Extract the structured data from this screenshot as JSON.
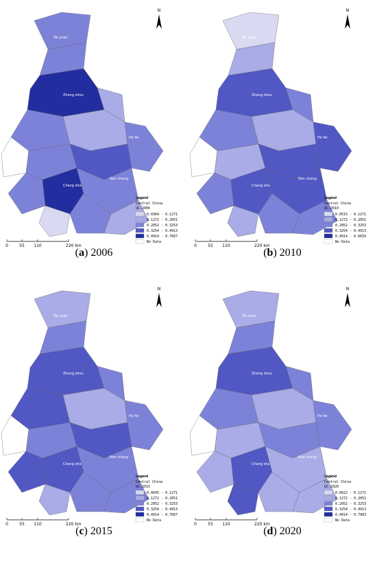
{
  "shared": {
    "north": "N",
    "cities": [
      "Tai yuan",
      "Zheng zhou",
      "He fei",
      "Chang sha",
      "Nan chang"
    ],
    "scale": [
      "0",
      "55",
      "110",
      "220 km"
    ],
    "class_colors": [
      "#d9daf2",
      "#a9ace6",
      "#7d82d9",
      "#5158c4",
      "#222ea0"
    ],
    "no_data_color": "#ffffff"
  },
  "maps": [
    {
      "caption": {
        "prefix": "(",
        "letter": "a",
        "suffix": ") 2006"
      },
      "legend": {
        "title": "Legend",
        "subtitle": "Central China",
        "field": "UC-2006",
        "classes": [
          "0.0364 - 0.1271",
          "0.1272 - 0.2051",
          "0.2052 - 0.3253",
          "0.3254 - 0.4913",
          "0.4914 - 0.7667"
        ],
        "no_data": "No Data"
      },
      "region_classes": [
        2,
        2,
        4,
        1,
        2,
        1,
        2,
        -1,
        2,
        3,
        2,
        4,
        2,
        0,
        2,
        1
      ]
    },
    {
      "caption": {
        "prefix": "(",
        "letter": "b",
        "suffix": ") 2010"
      },
      "legend": {
        "title": "Legend",
        "subtitle": "Central China",
        "field": "UC-2010",
        "classes": [
          "0.0515 - 0.1271",
          "0.1272 - 0.2051",
          "0.2052 - 0.3253",
          "0.3254 - 0.4913",
          "0.4914 - 0.6659"
        ],
        "no_data": "No Data"
      },
      "region_classes": [
        0,
        1,
        3,
        2,
        2,
        1,
        3,
        -1,
        1,
        3,
        2,
        3,
        3,
        1,
        2,
        2
      ]
    },
    {
      "caption": {
        "prefix": "(",
        "letter": "c",
        "suffix": ") 2015"
      },
      "legend": {
        "title": "Legend",
        "subtitle": "Central China",
        "field": "UC-2015",
        "classes": [
          "0.0645 - 0.1271",
          "0.1272 - 0.2051",
          "0.2052 - 0.3253",
          "0.3254 - 0.4913",
          "0.4914 - 0.7667"
        ],
        "no_data": "No Data"
      },
      "region_classes": [
        1,
        2,
        3,
        2,
        3,
        1,
        2,
        -1,
        2,
        3,
        3,
        3,
        2,
        1,
        2,
        2
      ]
    },
    {
      "caption": {
        "prefix": "(",
        "letter": "d",
        "suffix": ") 2020"
      },
      "legend": {
        "title": "Legend",
        "subtitle": "Central China",
        "field": "UC-2020",
        "classes": [
          "0.0622 - 0.1271",
          "0.1272 - 0.2051",
          "0.2052 - 0.3253",
          "0.3254 - 0.4913",
          "0.4914 - 0.7903"
        ],
        "no_data": "No Data"
      },
      "region_classes": [
        1,
        2,
        3,
        2,
        2,
        1,
        2,
        -1,
        1,
        2,
        1,
        3,
        1,
        3,
        1,
        1
      ]
    }
  ]
}
